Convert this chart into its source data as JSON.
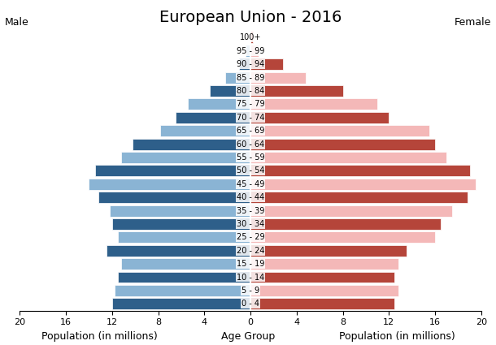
{
  "title": "European Union - 2016",
  "left_label": "Male",
  "right_label": "Female",
  "xlabel_left": "Population (in millions)",
  "xlabel_center": "Age Group",
  "xlabel_right": "Population (in millions)",
  "age_groups": [
    "0 - 4",
    "5 - 9",
    "10 - 14",
    "15 - 19",
    "20 - 24",
    "25 - 29",
    "30 - 34",
    "35 - 39",
    "40 - 44",
    "45 - 49",
    "50 - 54",
    "55 - 59",
    "60 - 64",
    "65 - 69",
    "70 - 74",
    "75 - 79",
    "80 - 84",
    "85 - 89",
    "90 - 94",
    "95 - 99",
    "100+"
  ],
  "male_values": [
    12.0,
    11.8,
    11.5,
    11.2,
    12.5,
    11.5,
    12.0,
    12.2,
    13.2,
    14.0,
    13.5,
    11.2,
    10.2,
    7.8,
    6.5,
    5.4,
    3.5,
    2.2,
    1.0,
    0.4,
    0.1
  ],
  "female_values": [
    12.5,
    12.8,
    12.5,
    12.8,
    13.5,
    16.0,
    16.5,
    17.5,
    18.8,
    19.5,
    19.0,
    17.0,
    16.0,
    15.5,
    12.0,
    11.0,
    8.0,
    4.8,
    2.8,
    0.7,
    0.2
  ],
  "male_light": "#8ab4d4",
  "male_dark": "#2e5f8a",
  "female_light": "#f4b8b8",
  "female_dark": "#b5453a",
  "xlim": 20,
  "background_color": "#ffffff",
  "bar_height": 0.85,
  "title_fontsize": 14,
  "label_fontsize": 9,
  "tick_fontsize": 8,
  "age_fontsize": 7,
  "xticks": [
    20,
    16,
    12,
    8,
    4,
    0,
    4,
    8,
    12,
    16,
    20
  ],
  "xtick_labels": [
    "20",
    "16",
    "12",
    "8",
    "4",
    "0",
    "4",
    "8",
    "12",
    "16",
    "20"
  ]
}
